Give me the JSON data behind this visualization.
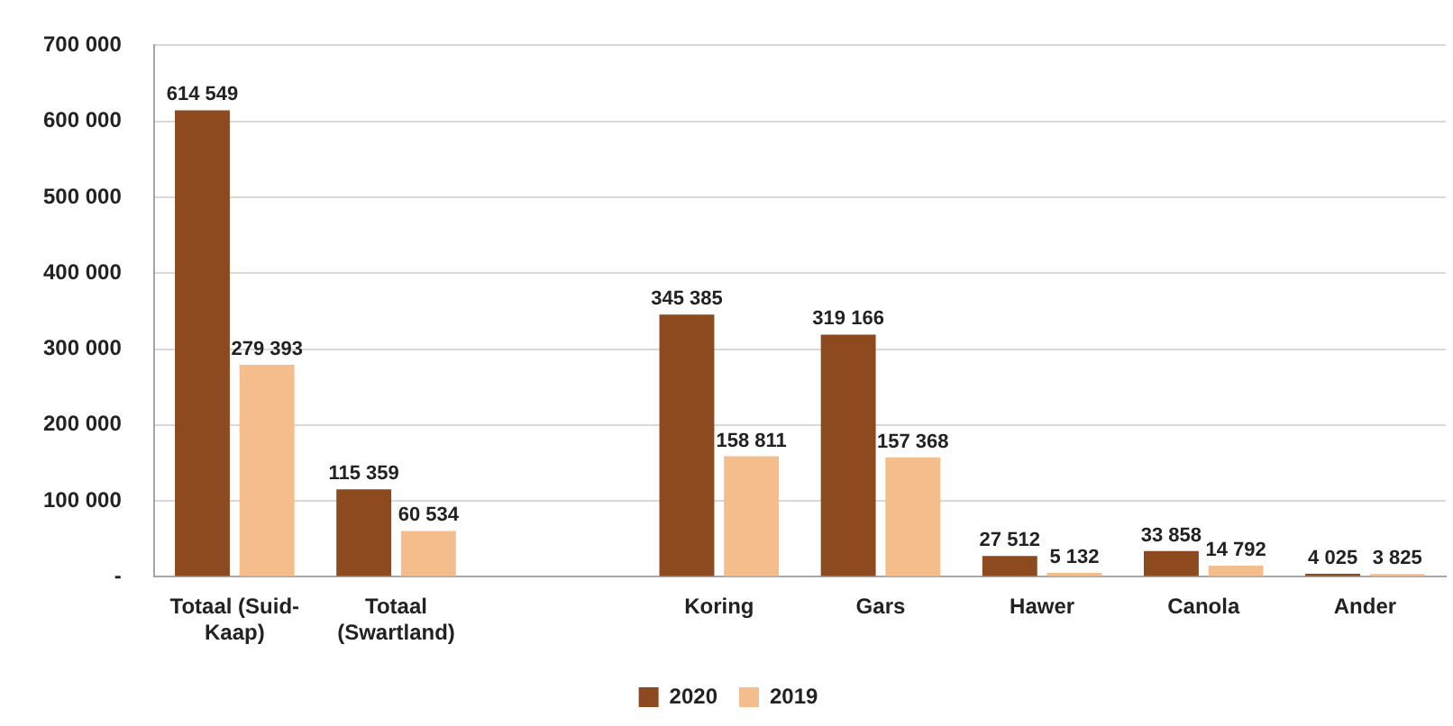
{
  "chart_data": {
    "type": "bar",
    "categories": [
      "Totaal (Suid-Kaap)",
      "Totaal (Swartland)",
      null,
      "Koring",
      "Gars",
      "Hawer",
      "Canola",
      "Ander"
    ],
    "series": [
      {
        "name": "2020",
        "color": "#8e4a1f",
        "values": [
          614549,
          115359,
          null,
          345385,
          319166,
          27512,
          33858,
          4025
        ],
        "value_labels": [
          "614 549",
          "115 359",
          null,
          "345 385",
          "319 166",
          "27 512",
          "33 858",
          "4 025"
        ]
      },
      {
        "name": "2019",
        "color": "#f5bd8b",
        "values": [
          279393,
          60534,
          null,
          158811,
          157368,
          5132,
          14792,
          3825
        ],
        "value_labels": [
          "279 393",
          "60 534",
          null,
          "158 811",
          "157 368",
          "5 132",
          "14 792",
          "3 825"
        ]
      }
    ],
    "ylim": [
      0,
      700000
    ],
    "yticks": [
      {
        "value": 0,
        "label": "-"
      },
      {
        "value": 100000,
        "label": "100 000"
      },
      {
        "value": 200000,
        "label": "200 000"
      },
      {
        "value": 300000,
        "label": "300 000"
      },
      {
        "value": 400000,
        "label": "400 000"
      },
      {
        "value": 500000,
        "label": "500 000"
      },
      {
        "value": 600000,
        "label": "600 000"
      },
      {
        "value": 700000,
        "label": "700 000"
      }
    ],
    "grid": "y",
    "legend": "bottom"
  }
}
